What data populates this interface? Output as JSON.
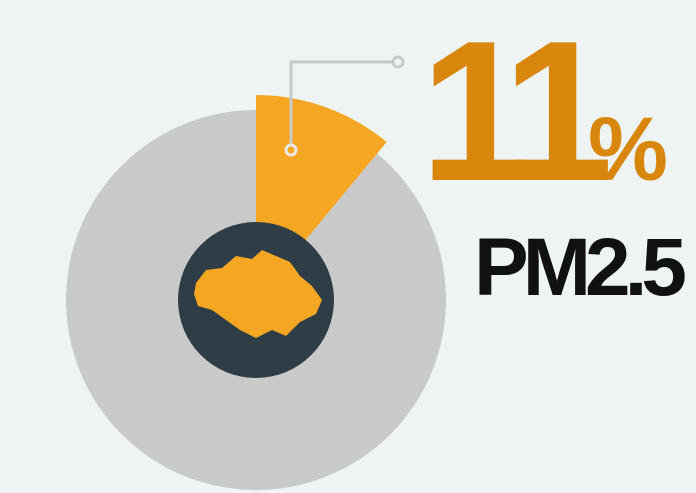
{
  "chart_data": {
    "type": "pie",
    "categories": [
      "PM2.5",
      null
    ],
    "values": [
      11,
      89
    ],
    "unit": "%",
    "colors": [
      "#f5a623",
      "#c9c9c9"
    ],
    "highlight": 0
  }
}
